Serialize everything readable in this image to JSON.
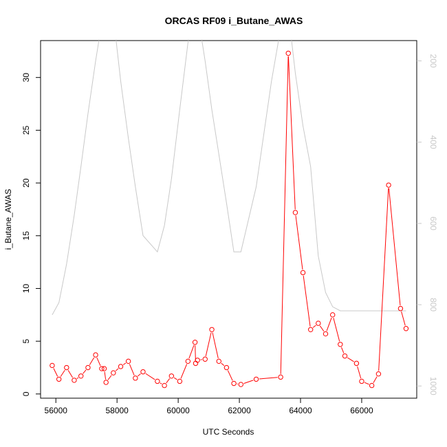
{
  "chart_data": {
    "type": "line",
    "title": "ORCAS RF09 i_Butane_AWAS",
    "xlabel": "UTC Seconds",
    "ylabel": "i_Butane_AWAS",
    "xlim": [
      55500,
      67800
    ],
    "ylim": [
      -0.4,
      33.5
    ],
    "x_ticks": [
      56000,
      58000,
      60000,
      62000,
      64000,
      66000
    ],
    "y_ticks": [
      0,
      5,
      10,
      15,
      20,
      25,
      30
    ],
    "y2_ticks": [
      200,
      400,
      600,
      800,
      1000
    ],
    "y2lim": [
      1030,
      150
    ],
    "series": [
      {
        "color": "#ff0000",
        "axis": "left",
        "markers": "open-circle",
        "points": [
          [
            55880,
            2.7
          ],
          [
            56100,
            1.4
          ],
          [
            56350,
            2.5
          ],
          [
            56600,
            1.3
          ],
          [
            56820,
            1.7
          ],
          [
            57050,
            2.5
          ],
          [
            57300,
            3.7
          ],
          [
            57500,
            2.4
          ],
          [
            57580,
            2.4
          ],
          [
            57640,
            1.1
          ],
          [
            57880,
            2.0
          ],
          [
            58120,
            2.6
          ],
          [
            58370,
            3.1
          ],
          [
            58600,
            1.5
          ],
          [
            58850,
            2.1
          ],
          [
            59320,
            1.2
          ],
          [
            59550,
            0.8
          ],
          [
            59780,
            1.7
          ],
          [
            60050,
            1.2
          ],
          [
            60320,
            3.1
          ],
          [
            60550,
            4.9
          ],
          [
            60570,
            2.9
          ],
          [
            60630,
            3.2
          ],
          [
            60880,
            3.3
          ],
          [
            61100,
            6.1
          ],
          [
            61330,
            3.1
          ],
          [
            61580,
            2.5
          ],
          [
            61820,
            1.0
          ],
          [
            62050,
            0.9
          ],
          [
            62550,
            1.4
          ],
          [
            63350,
            1.6
          ],
          [
            63600,
            32.3
          ],
          [
            63830,
            17.2
          ],
          [
            64080,
            11.5
          ],
          [
            64330,
            6.1
          ],
          [
            64580,
            6.7
          ],
          [
            64820,
            5.7
          ],
          [
            65050,
            7.5
          ],
          [
            65300,
            4.7
          ],
          [
            65450,
            3.6
          ],
          [
            65830,
            2.9
          ],
          [
            66000,
            1.2
          ],
          [
            66330,
            0.8
          ],
          [
            66550,
            1.9
          ],
          [
            66880,
            19.8
          ],
          [
            67270,
            8.1
          ],
          [
            67450,
            6.2
          ]
        ]
      },
      {
        "color": "#c8c8c8",
        "axis": "right",
        "markers": "none",
        "points": [
          [
            55880,
            825
          ],
          [
            56100,
            795
          ],
          [
            56350,
            700
          ],
          [
            56600,
            580
          ],
          [
            56820,
            460
          ],
          [
            57050,
            330
          ],
          [
            57300,
            200
          ],
          [
            57450,
            130
          ],
          [
            57640,
            80
          ],
          [
            57880,
            90
          ],
          [
            58120,
            250
          ],
          [
            58370,
            390
          ],
          [
            58600,
            510
          ],
          [
            58850,
            630
          ],
          [
            59320,
            670
          ],
          [
            59550,
            605
          ],
          [
            59780,
            490
          ],
          [
            60050,
            320
          ],
          [
            60320,
            155
          ],
          [
            60550,
            50
          ],
          [
            60630,
            80
          ],
          [
            60880,
            200
          ],
          [
            61100,
            320
          ],
          [
            61330,
            430
          ],
          [
            61580,
            550
          ],
          [
            61820,
            670
          ],
          [
            62050,
            670
          ],
          [
            62550,
            510
          ],
          [
            63050,
            250
          ],
          [
            63350,
            120
          ],
          [
            63600,
            80
          ],
          [
            63830,
            230
          ],
          [
            64080,
            360
          ],
          [
            64330,
            460
          ],
          [
            64580,
            680
          ],
          [
            64820,
            770
          ],
          [
            65050,
            805
          ],
          [
            65300,
            815
          ],
          [
            65450,
            815
          ],
          [
            65830,
            815
          ],
          [
            66000,
            815
          ],
          [
            66330,
            815
          ],
          [
            66550,
            815
          ],
          [
            66880,
            815
          ],
          [
            67270,
            815
          ],
          [
            67450,
            815
          ]
        ]
      }
    ]
  }
}
